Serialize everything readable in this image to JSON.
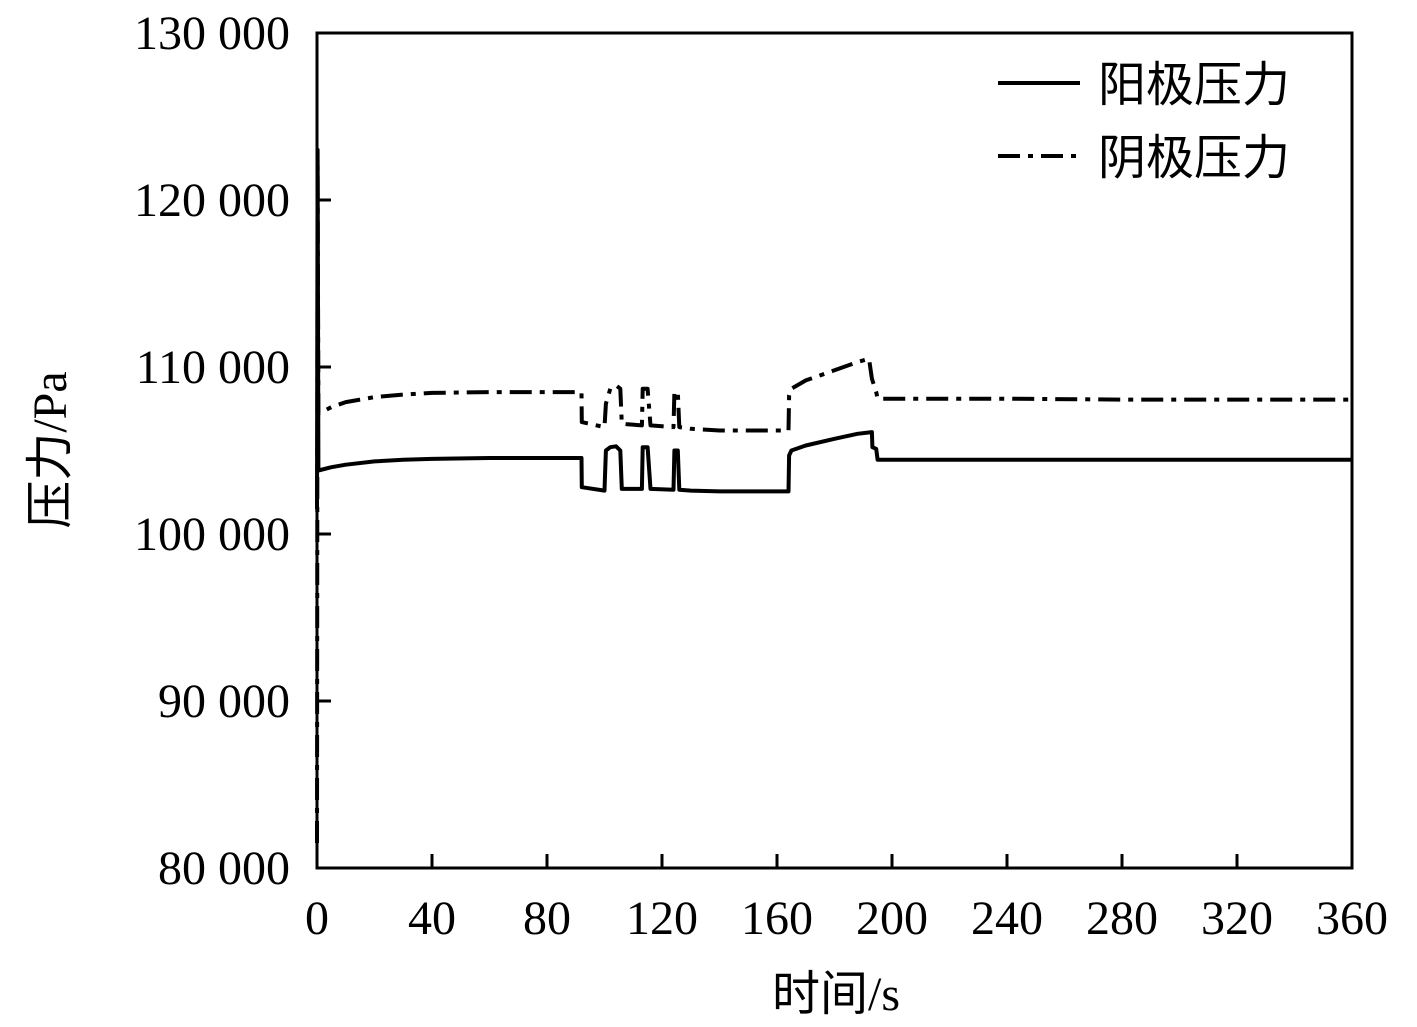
{
  "chart_data": {
    "type": "line",
    "xlabel": "时间/s",
    "ylabel": "压力/Pa",
    "xlim": [
      0,
      360
    ],
    "ylim": [
      80000,
      130000
    ],
    "x_ticks": [
      0,
      40,
      80,
      120,
      160,
      200,
      240,
      280,
      320,
      360
    ],
    "x_tick_labels": [
      "0",
      "40",
      "80",
      "120",
      "160",
      "200",
      "240",
      "280",
      "320",
      "360"
    ],
    "y_ticks": [
      80000,
      90000,
      100000,
      110000,
      120000,
      130000
    ],
    "y_tick_labels": [
      "80 000",
      "90 000",
      "100 000",
      "110 000",
      "120 000",
      "130 000"
    ],
    "grid": false,
    "legend_position": "top-right",
    "series": [
      {
        "name": "阳极压力",
        "line_style": "solid",
        "color": "#000000",
        "points": [
          [
            0,
            101500
          ],
          [
            0.2,
            123000
          ],
          [
            0.5,
            103800
          ],
          [
            5,
            104000
          ],
          [
            10,
            104150
          ],
          [
            20,
            104350
          ],
          [
            30,
            104450
          ],
          [
            40,
            104500
          ],
          [
            60,
            104550
          ],
          [
            80,
            104550
          ],
          [
            92,
            104550
          ],
          [
            92.1,
            102800
          ],
          [
            100,
            102600
          ],
          [
            100.5,
            105000
          ],
          [
            102,
            105200
          ],
          [
            104,
            105250
          ],
          [
            105.5,
            105000
          ],
          [
            106,
            102700
          ],
          [
            113,
            102700
          ],
          [
            113.3,
            105200
          ],
          [
            115,
            105200
          ],
          [
            116,
            102700
          ],
          [
            124,
            102650
          ],
          [
            124.3,
            105000
          ],
          [
            125.5,
            105000
          ],
          [
            126,
            102650
          ],
          [
            130,
            102600
          ],
          [
            140,
            102550
          ],
          [
            150,
            102550
          ],
          [
            164,
            102550
          ],
          [
            164.2,
            104700
          ],
          [
            165,
            105000
          ],
          [
            170,
            105300
          ],
          [
            180,
            105700
          ],
          [
            188,
            106000
          ],
          [
            193,
            106100
          ],
          [
            193.2,
            105200
          ],
          [
            194.5,
            105100
          ],
          [
            195,
            104450
          ],
          [
            200,
            104450
          ],
          [
            240,
            104450
          ],
          [
            280,
            104450
          ],
          [
            320,
            104450
          ],
          [
            360,
            104450
          ]
        ]
      },
      {
        "name": "阴极压力",
        "line_style": "dash-dot",
        "color": "#000000",
        "points": [
          [
            0,
            81500
          ],
          [
            0.2,
            122000
          ],
          [
            0.5,
            107200
          ],
          [
            5,
            107600
          ],
          [
            10,
            107900
          ],
          [
            20,
            108200
          ],
          [
            30,
            108350
          ],
          [
            40,
            108450
          ],
          [
            60,
            108500
          ],
          [
            80,
            108500
          ],
          [
            92,
            108500
          ],
          [
            92.1,
            106700
          ],
          [
            100,
            106400
          ],
          [
            100.5,
            107800
          ],
          [
            102,
            108700
          ],
          [
            104,
            108900
          ],
          [
            105.5,
            108700
          ],
          [
            106,
            106600
          ],
          [
            113,
            106500
          ],
          [
            113.3,
            108700
          ],
          [
            115,
            108700
          ],
          [
            116,
            106500
          ],
          [
            124,
            106400
          ],
          [
            124.3,
            108500
          ],
          [
            125.5,
            108500
          ],
          [
            126,
            106400
          ],
          [
            130,
            106300
          ],
          [
            140,
            106200
          ],
          [
            150,
            106200
          ],
          [
            164,
            106200
          ],
          [
            164.2,
            108300
          ],
          [
            165,
            108700
          ],
          [
            170,
            109200
          ],
          [
            180,
            109800
          ],
          [
            188,
            110300
          ],
          [
            192,
            110500
          ],
          [
            193,
            109300
          ],
          [
            194.5,
            108500
          ],
          [
            195,
            108100
          ],
          [
            200,
            108100
          ],
          [
            240,
            108100
          ],
          [
            280,
            108050
          ],
          [
            320,
            108050
          ],
          [
            360,
            108050
          ]
        ]
      }
    ]
  }
}
